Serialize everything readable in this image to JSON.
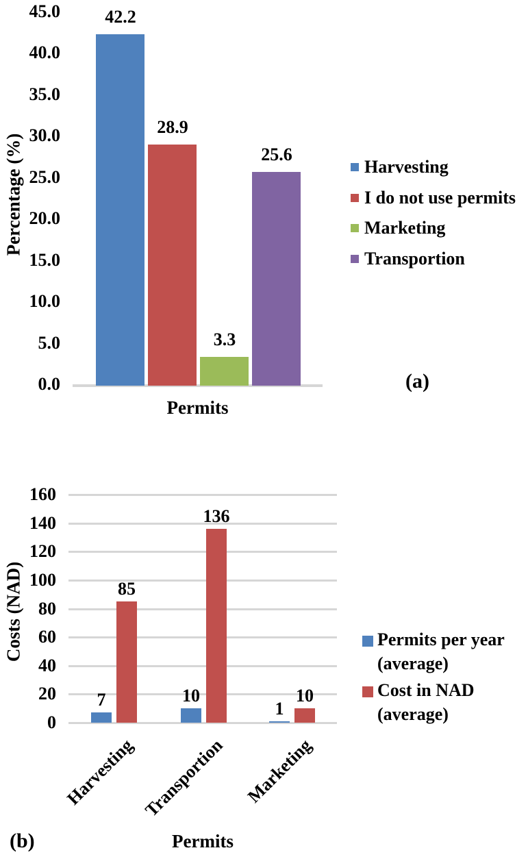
{
  "style": {
    "axis_color": "#d6d6d6",
    "text_color": "#000000",
    "background": "#ffffff"
  },
  "chart_data": [
    {
      "type": "bar",
      "panel_label": "(a)",
      "title": "",
      "xlabel": "Permits",
      "ylabel": "Percentage (%)",
      "ylim": [
        0,
        45
      ],
      "ytick_step": 5,
      "ytick_labels": [
        "0.0",
        "5.0",
        "10.0",
        "15.0",
        "20.0",
        "25.0",
        "30.0",
        "35.0",
        "40.0",
        "45.0"
      ],
      "grid": false,
      "legend_position": "right",
      "categories": [
        "Harvesting",
        "I do not use permits",
        "Marketing",
        "Transportion"
      ],
      "values": [
        42.2,
        28.9,
        3.3,
        25.6
      ],
      "data_labels": [
        "42.2",
        "28.9",
        "3.3",
        "25.6"
      ],
      "colors": [
        "#4F81BD",
        "#C0504D",
        "#9BBB59",
        "#8064A2"
      ],
      "legend": [
        {
          "label": "Harvesting",
          "color": "#4F81BD"
        },
        {
          "label": "I do not use permits",
          "color": "#C0504D"
        },
        {
          "label": "Marketing",
          "color": "#9BBB59"
        },
        {
          "label": "Transportion",
          "color": "#8064A2"
        }
      ]
    },
    {
      "type": "bar",
      "panel_label": "(b)",
      "title": "",
      "xlabel": "Permits",
      "ylabel": "Costs (NAD)",
      "ylim": [
        0,
        160
      ],
      "ytick_step": 20,
      "ytick_labels": [
        "0",
        "20",
        "40",
        "60",
        "80",
        "100",
        "120",
        "140",
        "160"
      ],
      "grid": true,
      "legend_position": "right",
      "categories": [
        "Harvesting",
        "Transportion",
        "Marketing"
      ],
      "series": [
        {
          "name": "Permits per year (average)",
          "legend_lines": [
            "Permits per year",
            "(average)"
          ],
          "color": "#4F81BD",
          "values": [
            7,
            10,
            1
          ],
          "data_labels": [
            "7",
            "10",
            "1"
          ]
        },
        {
          "name": "Cost in NAD (average)",
          "legend_lines": [
            "Cost in NAD",
            "(average)"
          ],
          "color": "#C0504D",
          "values": [
            85,
            136,
            10
          ],
          "data_labels": [
            "85",
            "136",
            "10"
          ]
        }
      ]
    }
  ]
}
